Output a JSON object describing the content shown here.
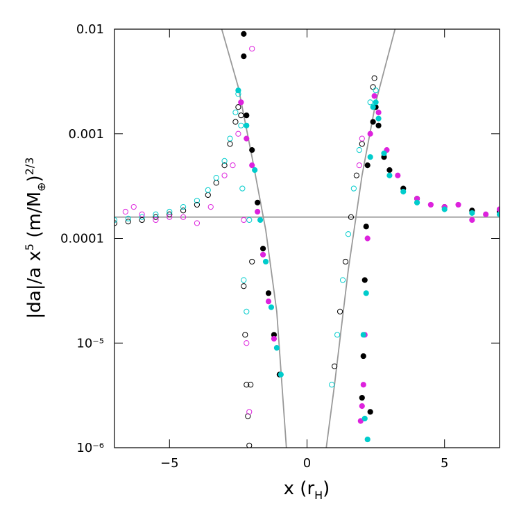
{
  "chart_data": {
    "type": "scatter",
    "xlabel": [
      "x (r",
      "H",
      ")"
    ],
    "ylabel": [
      "|da|/a x",
      "5",
      " (m/M",
      "⊕",
      ")",
      "2/3"
    ],
    "xlim": [
      -7,
      7
    ],
    "xticks": [
      {
        "value": -5,
        "label": "−5"
      },
      0,
      5
    ],
    "ylim": [
      1e-06,
      0.01
    ],
    "ylog": true,
    "yticks": [
      {
        "value": 1e-06,
        "label": "10⁻⁶"
      },
      {
        "value": 1e-05,
        "label": "10⁻⁵"
      },
      0.0001,
      0.001,
      0.01
    ],
    "series": [
      {
        "color": "#999999",
        "marker": "line",
        "x": [
          -7,
          7
        ],
        "values": [
          0.00016,
          0.00016
        ]
      },
      {
        "color": "#999999",
        "marker": "line",
        "x": [
          -3.1,
          -2.5,
          -2,
          -1.5,
          -1.1,
          -0.75
        ],
        "values": [
          0.01,
          0.0028,
          0.0006,
          0.00012,
          2e-05,
          1e-06
        ]
      },
      {
        "color": "#999999",
        "marker": "line",
        "x": [
          0.7,
          1,
          1.5,
          2,
          2.5,
          3.2
        ],
        "values": [
          1e-06,
          4e-06,
          5e-05,
          0.0004,
          0.002,
          0.01
        ]
      },
      {
        "color": "#000000",
        "marker": "open",
        "x": [
          -7,
          -6.5,
          -6,
          -5.5,
          -5,
          -4.5,
          -4,
          -3.6,
          -3.3,
          -3,
          -2.8,
          -2.6,
          -2.5,
          -2.4,
          -2.3,
          -2.25,
          -2.2,
          -2.15,
          -2.1,
          -2.05,
          -2,
          1,
          1.2,
          1.4,
          1.6,
          1.8,
          2,
          2.4,
          2.45
        ],
        "values": [
          0.00014,
          0.000145,
          0.00015,
          0.00016,
          0.00017,
          0.000185,
          0.00021,
          0.00026,
          0.00034,
          0.0005,
          0.0008,
          0.0013,
          0.0018,
          0.0015,
          3.5e-05,
          1.2e-05,
          4e-06,
          2e-06,
          1.05e-06,
          4e-06,
          6e-05,
          6e-06,
          2e-05,
          6e-05,
          0.00016,
          0.0004,
          0.0008,
          0.0028,
          0.0034
        ]
      },
      {
        "color": "#00cccc",
        "marker": "open",
        "x": [
          -7,
          -6.5,
          -6,
          -5.5,
          -5,
          -4.5,
          -4,
          -3.6,
          -3.3,
          -3,
          -2.8,
          -2.6,
          -2.5,
          -2.4,
          -2.35,
          -2.3,
          -2.2,
          -2.1,
          0.9,
          1.1,
          1.3,
          1.5,
          1.7,
          1.9,
          2.3,
          2.5
        ],
        "values": [
          0.00015,
          0.000155,
          0.00016,
          0.00017,
          0.00018,
          0.0002,
          0.00023,
          0.00029,
          0.00038,
          0.00055,
          0.0009,
          0.0016,
          0.0024,
          0.0012,
          0.0003,
          4e-05,
          2e-05,
          0.00015,
          4e-06,
          1.2e-05,
          4e-05,
          0.00011,
          0.0003,
          0.0007,
          0.002,
          0.0026
        ]
      },
      {
        "color": "#dd22dd",
        "marker": "open",
        "x": [
          -6.6,
          -6.3,
          -6,
          -5.5,
          -5,
          -4.5,
          -4,
          -3.5,
          -3,
          -2.7,
          -2.5,
          -2.4,
          -2.3,
          -2.2,
          -2.1,
          -2,
          1.9,
          2
        ],
        "values": [
          0.00018,
          0.0002,
          0.00017,
          0.00015,
          0.00016,
          0.00016,
          0.00014,
          0.0002,
          0.0004,
          0.0005,
          0.001,
          0.002,
          0.00015,
          1e-05,
          2.2e-06,
          0.0065,
          0.0005,
          0.0009
        ]
      },
      {
        "color": "#000000",
        "marker": "filled",
        "x": [
          -2.3,
          -2.3,
          -2.2,
          -2,
          -1.8,
          -1.6,
          -1.4,
          -1.2,
          -1,
          2,
          2.05,
          2.1,
          2.15,
          2.2,
          2.3,
          2.4,
          2.5,
          2.6,
          2.8,
          3,
          3.5,
          4,
          5,
          6,
          7
        ],
        "values": [
          0.009,
          0.0055,
          0.0015,
          0.0007,
          0.00022,
          8e-05,
          3e-05,
          1.2e-05,
          5e-06,
          3e-06,
          7.5e-06,
          4e-05,
          0.00013,
          0.0005,
          2.2e-06,
          0.0013,
          0.0018,
          0.0012,
          0.0006,
          0.00045,
          0.0003,
          0.00024,
          0.0002,
          0.000185,
          0.00018
        ]
      },
      {
        "color": "#dd22dd",
        "marker": "filled",
        "x": [
          -2.4,
          -2.2,
          -2,
          -1.8,
          -1.6,
          -1.4,
          -1.2,
          1.95,
          2,
          2.05,
          2.1,
          2.2,
          2.3,
          2.45,
          2.6,
          2.9,
          3.3,
          4,
          4.5,
          5,
          5.5,
          6,
          6.5,
          7
        ],
        "values": [
          0.002,
          0.0009,
          0.0005,
          0.00018,
          7e-05,
          2.5e-05,
          1.1e-05,
          1.8e-06,
          2.5e-06,
          4e-06,
          1.2e-05,
          0.0001,
          0.001,
          0.0023,
          0.0016,
          0.0007,
          0.0004,
          0.00024,
          0.00021,
          0.0002,
          0.00021,
          0.00015,
          0.00017,
          0.00019
        ]
      },
      {
        "color": "#00cccc",
        "marker": "filled",
        "x": [
          -2.5,
          -2.2,
          -1.9,
          -1.7,
          -1.5,
          -1.3,
          -1.1,
          -0.95,
          2.05,
          2.1,
          2.15,
          2.2,
          2.3,
          2.4,
          2.5,
          2.6,
          2.8,
          3,
          3.5,
          4,
          5,
          6,
          7
        ],
        "values": [
          0.0026,
          0.0012,
          0.00045,
          0.00015,
          6e-05,
          2.2e-05,
          9e-06,
          5e-06,
          1.2e-05,
          1.9e-06,
          3e-05,
          1.2e-06,
          0.0006,
          0.0018,
          0.002,
          0.0014,
          0.00065,
          0.0004,
          0.00028,
          0.00022,
          0.00019,
          0.000175,
          0.00017
        ]
      }
    ]
  }
}
